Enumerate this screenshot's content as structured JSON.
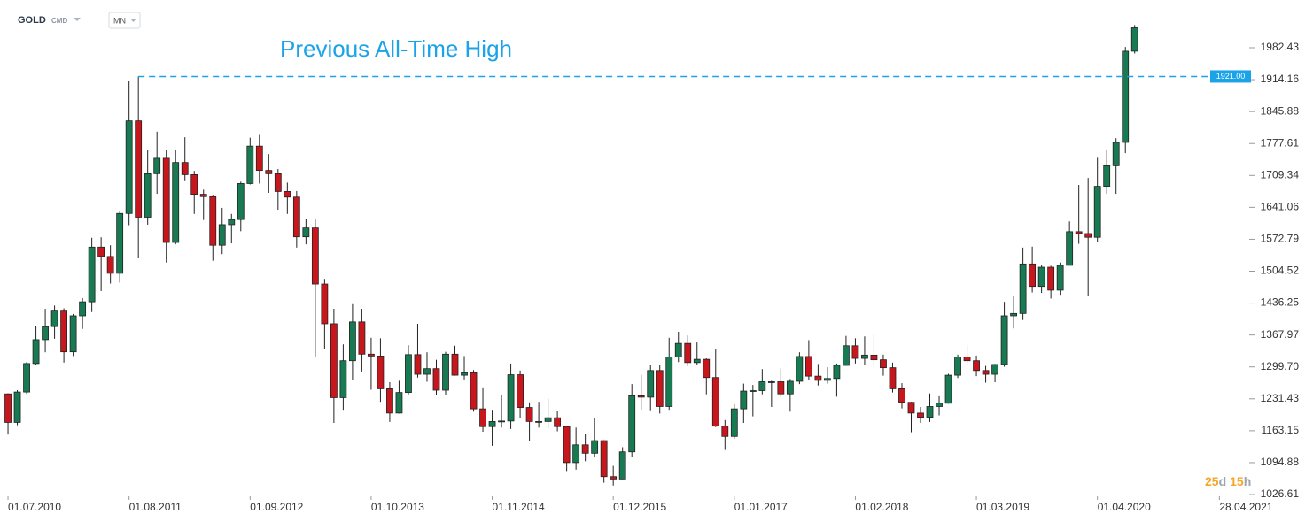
{
  "header": {
    "symbol": "GOLD",
    "market": "CMD",
    "timeframe": "MN"
  },
  "countdown": [
    "25",
    "d",
    "15",
    "h"
  ],
  "chart_data": {
    "type": "candlestick",
    "up_color": "#177a52",
    "down_color": "#c8161d",
    "xlim": [
      -0.86,
      133.3
    ],
    "xticks": [
      {
        "value": 0,
        "label": "01.07.2010"
      },
      {
        "value": 13,
        "label": "01.08.2011"
      },
      {
        "value": 26,
        "label": "01.09.2012"
      },
      {
        "value": 39,
        "label": "01.10.2013"
      },
      {
        "value": 52,
        "label": "01.11.2014"
      },
      {
        "value": 65,
        "label": "01.12.2015"
      },
      {
        "value": 78,
        "label": "01.01.2017"
      },
      {
        "value": 91,
        "label": "01.02.2018"
      },
      {
        "value": 104,
        "label": "01.03.2019"
      },
      {
        "value": 117,
        "label": "01.04.2020"
      },
      {
        "value": 130.1,
        "label": "28.04.2021"
      }
    ],
    "ylim": [
      1015.3,
      2084.6
    ],
    "yticks": [
      1026.61,
      1094.88,
      1163.15,
      1231.43,
      {
        "value": 1299.7,
        "label": "1299.70"
      },
      1367.97,
      1436.25,
      1504.52,
      1572.79,
      1641.06,
      1709.34,
      1777.61,
      1845.88,
      1914.16,
      1982.43
    ],
    "reference_line": {
      "value": 1921,
      "label": "1921.00",
      "x": 14,
      "color": "#1aa3e8",
      "annotation": "Previous All-Time High"
    },
    "ohlc": [
      [
        1242,
        1243,
        1155,
        1181
      ],
      [
        1181,
        1250,
        1175,
        1246
      ],
      [
        1246,
        1310,
        1242,
        1307
      ],
      [
        1307,
        1387,
        1305,
        1358
      ],
      [
        1358,
        1424,
        1331,
        1386
      ],
      [
        1386,
        1431,
        1360,
        1421
      ],
      [
        1421,
        1425,
        1309,
        1332
      ],
      [
        1332,
        1413,
        1323,
        1409
      ],
      [
        1409,
        1447,
        1381,
        1439
      ],
      [
        1439,
        1576,
        1417,
        1556
      ],
      [
        1556,
        1577,
        1462,
        1536
      ],
      [
        1536,
        1560,
        1478,
        1500
      ],
      [
        1500,
        1632,
        1480,
        1628
      ],
      [
        1628,
        1912,
        1603,
        1826
      ],
      [
        1826,
        1921,
        1532,
        1620
      ],
      [
        1620,
        1764,
        1604,
        1713
      ],
      [
        1713,
        1803,
        1670,
        1746
      ],
      [
        1746,
        1764,
        1523,
        1566
      ],
      [
        1566,
        1764,
        1562,
        1737
      ],
      [
        1737,
        1791,
        1697,
        1711
      ],
      [
        1711,
        1719,
        1627,
        1669
      ],
      [
        1669,
        1679,
        1614,
        1664
      ],
      [
        1664,
        1668,
        1527,
        1560
      ],
      [
        1560,
        1640,
        1541,
        1604
      ],
      [
        1604,
        1627,
        1564,
        1615
      ],
      [
        1615,
        1696,
        1590,
        1692
      ],
      [
        1692,
        1790,
        1690,
        1772
      ],
      [
        1772,
        1796,
        1692,
        1720
      ],
      [
        1720,
        1755,
        1672,
        1713
      ],
      [
        1713,
        1723,
        1636,
        1675
      ],
      [
        1675,
        1694,
        1627,
        1663
      ],
      [
        1663,
        1676,
        1555,
        1578
      ],
      [
        1578,
        1616,
        1562,
        1597
      ],
      [
        1597,
        1617,
        1321,
        1477
      ],
      [
        1477,
        1488,
        1338,
        1392
      ],
      [
        1392,
        1424,
        1180,
        1234
      ],
      [
        1234,
        1348,
        1208,
        1313
      ],
      [
        1313,
        1434,
        1271,
        1396
      ],
      [
        1396,
        1424,
        1290,
        1327
      ],
      [
        1327,
        1362,
        1251,
        1323
      ],
      [
        1323,
        1361,
        1225,
        1253
      ],
      [
        1253,
        1267,
        1182,
        1201
      ],
      [
        1201,
        1270,
        1200,
        1245
      ],
      [
        1245,
        1346,
        1239,
        1326
      ],
      [
        1326,
        1392,
        1277,
        1284
      ],
      [
        1284,
        1331,
        1268,
        1296
      ],
      [
        1296,
        1315,
        1240,
        1250
      ],
      [
        1250,
        1332,
        1240,
        1327
      ],
      [
        1327,
        1345,
        1281,
        1282
      ],
      [
        1282,
        1323,
        1273,
        1287
      ],
      [
        1287,
        1293,
        1204,
        1210
      ],
      [
        1210,
        1256,
        1161,
        1172
      ],
      [
        1172,
        1208,
        1131,
        1183
      ],
      [
        1183,
        1239,
        1170,
        1184
      ],
      [
        1184,
        1307,
        1167,
        1283
      ],
      [
        1283,
        1292,
        1191,
        1213
      ],
      [
        1213,
        1224,
        1142,
        1183
      ],
      [
        1183,
        1225,
        1170,
        1183
      ],
      [
        1183,
        1232,
        1169,
        1191
      ],
      [
        1191,
        1206,
        1162,
        1172
      ],
      [
        1172,
        1172,
        1077,
        1095
      ],
      [
        1095,
        1170,
        1080,
        1133
      ],
      [
        1133,
        1156,
        1098,
        1115
      ],
      [
        1115,
        1191,
        1106,
        1142
      ],
      [
        1142,
        1143,
        1052,
        1065
      ],
      [
        1065,
        1088,
        1046,
        1060
      ],
      [
        1060,
        1128,
        1062,
        1118
      ],
      [
        1118,
        1263,
        1107,
        1238
      ],
      [
        1238,
        1283,
        1208,
        1235
      ],
      [
        1235,
        1304,
        1207,
        1292
      ],
      [
        1292,
        1303,
        1200,
        1215
      ],
      [
        1215,
        1362,
        1208,
        1321
      ],
      [
        1321,
        1375,
        1310,
        1350
      ],
      [
        1350,
        1367,
        1301,
        1309
      ],
      [
        1309,
        1352,
        1303,
        1316
      ],
      [
        1316,
        1318,
        1241,
        1277
      ],
      [
        1277,
        1337,
        1171,
        1173
      ],
      [
        1173,
        1186,
        1122,
        1151
      ],
      [
        1151,
        1220,
        1146,
        1210
      ],
      [
        1210,
        1264,
        1180,
        1248
      ],
      [
        1248,
        1261,
        1194,
        1249
      ],
      [
        1249,
        1295,
        1241,
        1268
      ],
      [
        1268,
        1270,
        1214,
        1268
      ],
      [
        1268,
        1296,
        1236,
        1242
      ],
      [
        1242,
        1274,
        1204,
        1269
      ],
      [
        1269,
        1331,
        1263,
        1322
      ],
      [
        1322,
        1357,
        1271,
        1280
      ],
      [
        1280,
        1306,
        1260,
        1271
      ],
      [
        1271,
        1299,
        1264,
        1275
      ],
      [
        1275,
        1307,
        1236,
        1303
      ],
      [
        1303,
        1366,
        1302,
        1345
      ],
      [
        1345,
        1361,
        1307,
        1318
      ],
      [
        1318,
        1365,
        1303,
        1325
      ],
      [
        1325,
        1369,
        1302,
        1315
      ],
      [
        1315,
        1326,
        1281,
        1298
      ],
      [
        1298,
        1309,
        1245,
        1253
      ],
      [
        1253,
        1265,
        1211,
        1224
      ],
      [
        1224,
        1225,
        1160,
        1201
      ],
      [
        1201,
        1214,
        1180,
        1192
      ],
      [
        1192,
        1243,
        1182,
        1215
      ],
      [
        1215,
        1237,
        1196,
        1222
      ],
      [
        1222,
        1285,
        1221,
        1282
      ],
      [
        1282,
        1326,
        1276,
        1321
      ],
      [
        1321,
        1346,
        1303,
        1313
      ],
      [
        1313,
        1324,
        1280,
        1292
      ],
      [
        1292,
        1302,
        1266,
        1284
      ],
      [
        1284,
        1306,
        1267,
        1305
      ],
      [
        1305,
        1439,
        1300,
        1409
      ],
      [
        1409,
        1452,
        1382,
        1414
      ],
      [
        1414,
        1555,
        1400,
        1520
      ],
      [
        1520,
        1557,
        1459,
        1472
      ],
      [
        1472,
        1517,
        1458,
        1513
      ],
      [
        1513,
        1516,
        1446,
        1464
      ],
      [
        1464,
        1523,
        1454,
        1517
      ],
      [
        1517,
        1611,
        1517,
        1589
      ],
      [
        1589,
        1689,
        1563,
        1585
      ],
      [
        1585,
        1704,
        1451,
        1577
      ],
      [
        1577,
        1747,
        1567,
        1686
      ],
      [
        1686,
        1765,
        1670,
        1730
      ],
      [
        1730,
        1789,
        1670,
        1780
      ],
      [
        1780,
        1984,
        1757,
        1975
      ],
      [
        1975,
        2031,
        1970,
        2025
      ]
    ]
  }
}
